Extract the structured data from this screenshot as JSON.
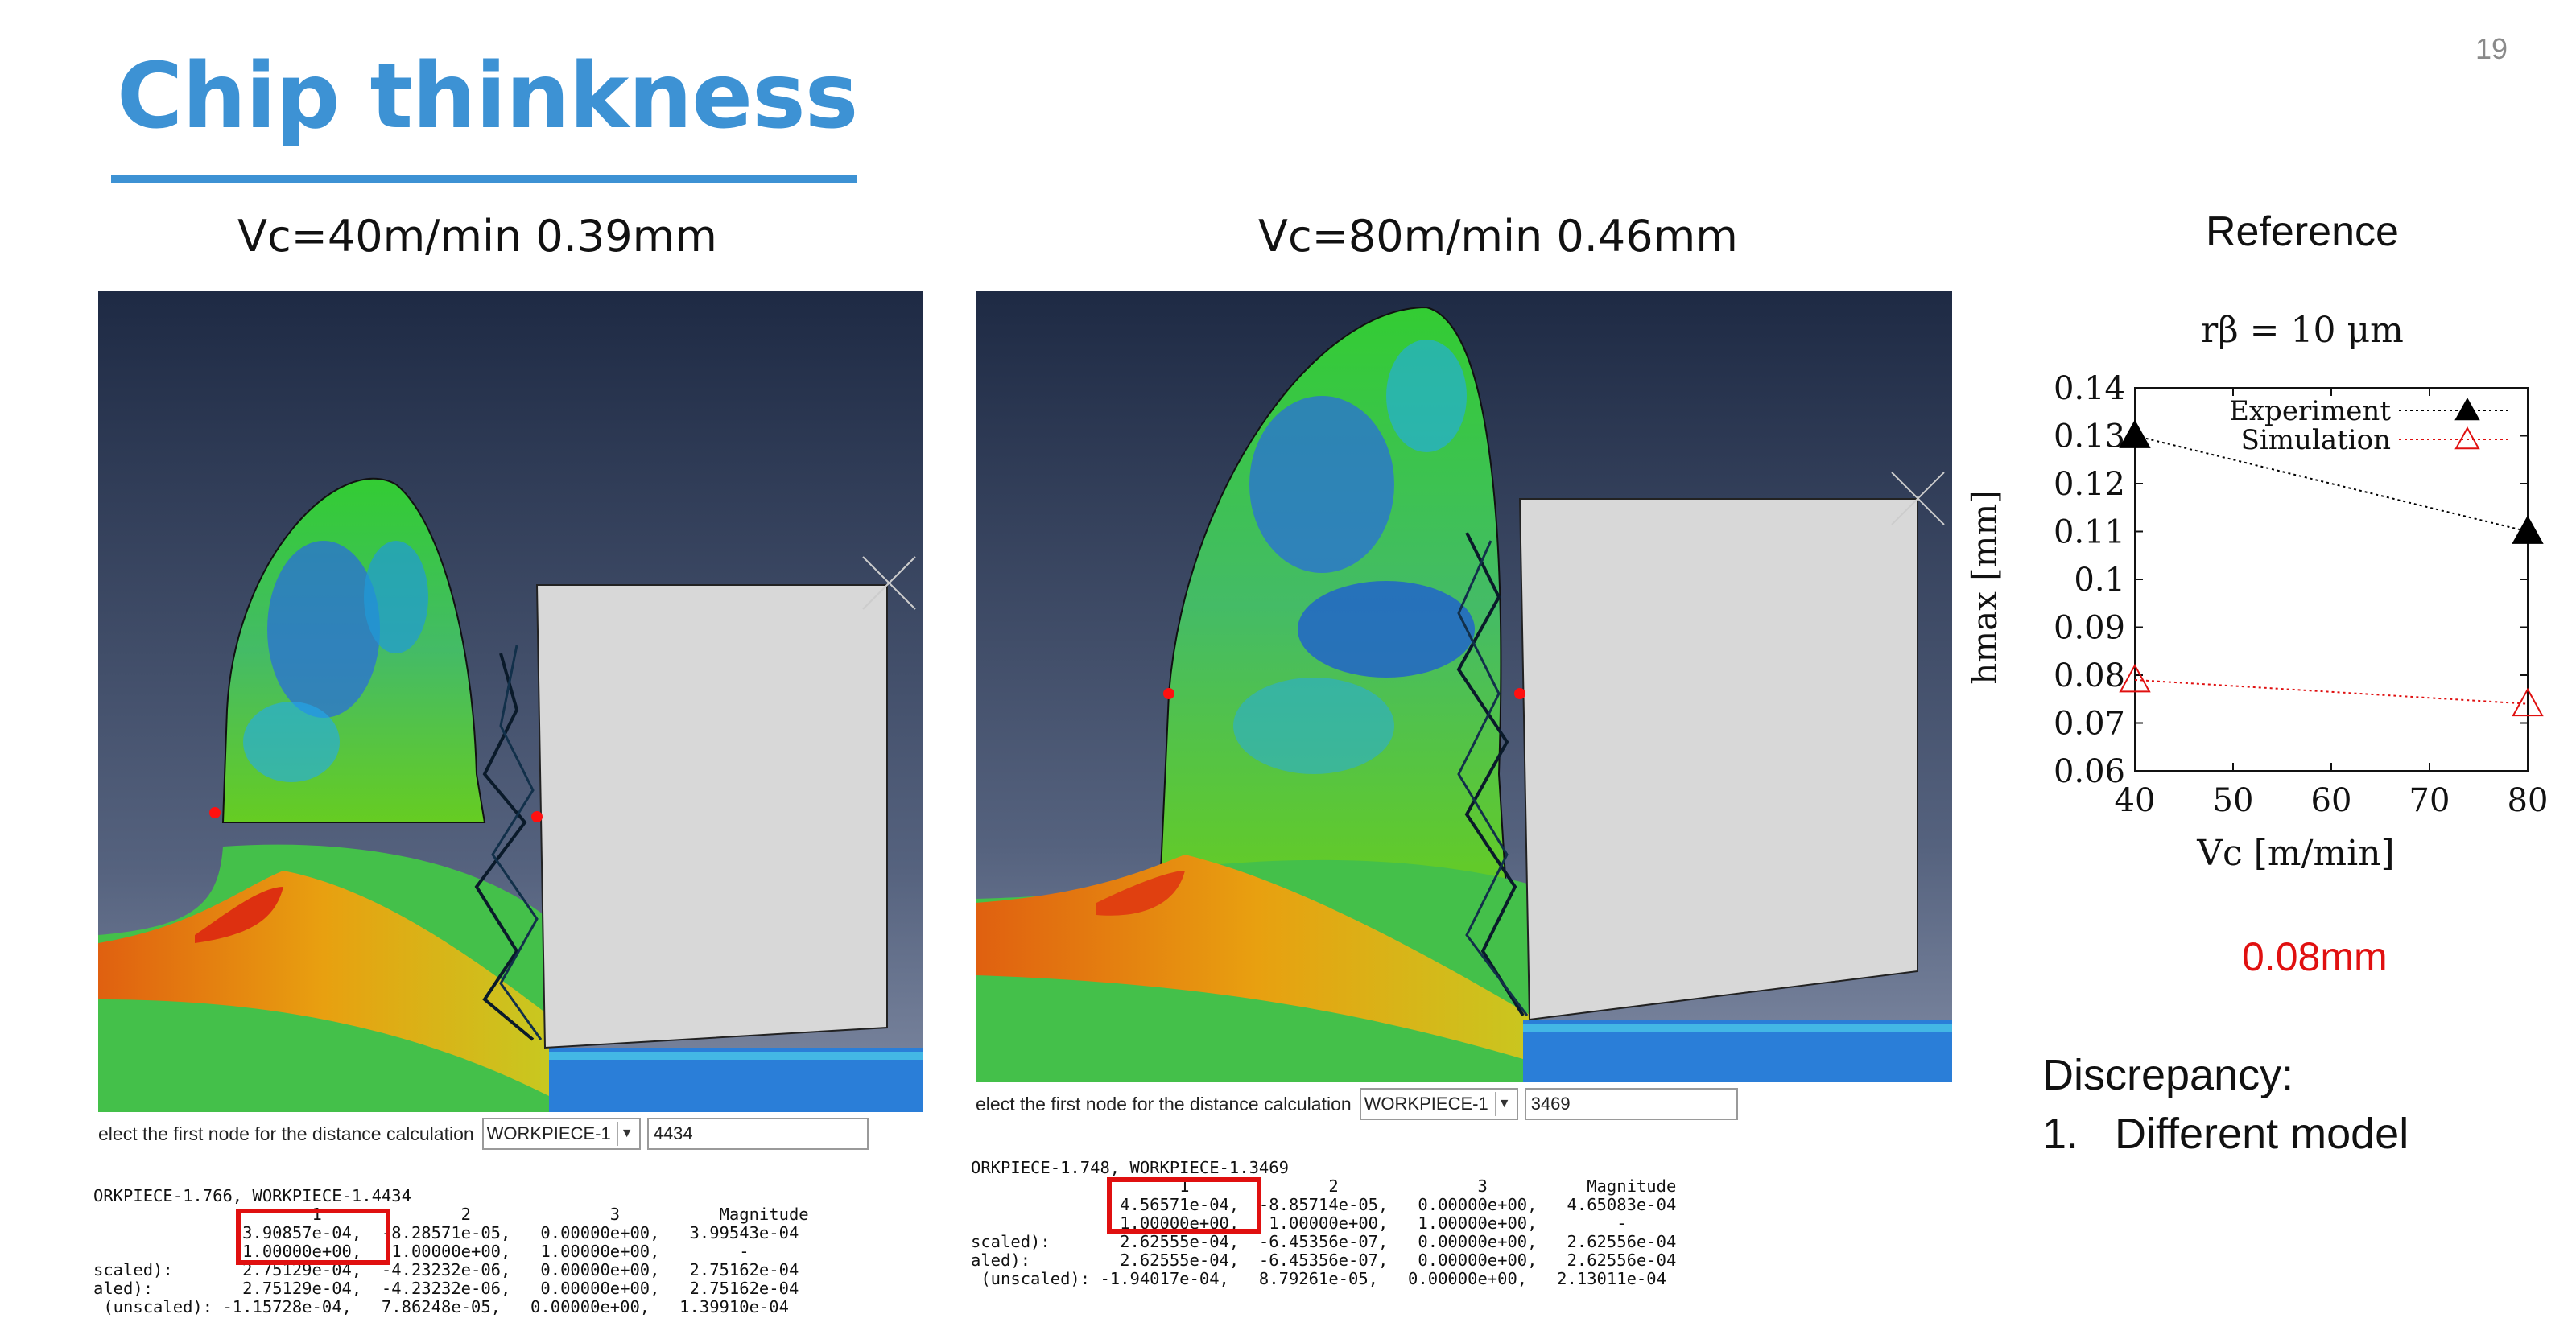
{
  "slide": {
    "title": "Chip thinkness",
    "page_number": "19",
    "accent_color": "#3d92d4"
  },
  "panels": [
    {
      "caption": "Vc=40m/min  0.39mm",
      "toolbar": {
        "label": "elect the first node for the distance calculation",
        "select_value": "WORKPIECE-1",
        "input_value": "4434"
      },
      "console_lines": [
        "ORKPIECE-1.766, WORKPIECE-1.4434",
        "                      1              2              3          Magnitude",
        "               3.90857e-04,  -8.28571e-05,   0.00000e+00,   3.99543e-04",
        "               1.00000e+00,   1.00000e+00,   1.00000e+00,        -",
        "scaled):       2.75129e-04,  -4.23232e-06,   0.00000e+00,   2.75162e-04",
        "aled):         2.75129e-04,  -4.23232e-06,   0.00000e+00,   2.75162e-04",
        " (unscaled): -1.15728e-04,   7.86248e-05,   0.00000e+00,   1.39910e-04"
      ]
    },
    {
      "caption": "Vc=80m/min  0.46mm",
      "toolbar": {
        "label": "elect the first node for the distance calculation",
        "select_value": "WORKPIECE-1",
        "input_value": "3469"
      },
      "console_lines": [
        "ORKPIECE-1.748, WORKPIECE-1.3469",
        "                     1              2              3          Magnitude",
        "               4.56571e-04,  -8.85714e-05,   0.00000e+00,   4.65083e-04",
        "               1.00000e+00,   1.00000e+00,   1.00000e+00,        -",
        "scaled):       2.62555e-04,  -6.45356e-07,   0.00000e+00,   2.62556e-04",
        "aled):         2.62555e-04,  -6.45356e-07,   0.00000e+00,   2.62556e-04",
        " (unscaled): -1.94017e-04,   8.79261e-05,   0.00000e+00,   2.13011e-04"
      ]
    }
  ],
  "reference": {
    "label": "Reference",
    "value": "0.08mm"
  },
  "discrepancy": {
    "title": "Discrepancy:",
    "items": [
      {
        "num": "1.",
        "text": "Different model"
      }
    ]
  },
  "chart_data": {
    "type": "line",
    "title": "rβ = 10 μm",
    "xlabel": "Vc [m/min]",
    "ylabel": "hmax [mm]",
    "xlim": [
      40,
      80
    ],
    "ylim": [
      0.06,
      0.14
    ],
    "x_ticks": [
      "40",
      "50",
      "60",
      "70",
      "80"
    ],
    "y_ticks": [
      "0.06",
      "0.07",
      "0.08",
      "0.09",
      "0.1",
      "0.11",
      "0.12",
      "0.13",
      "0.14"
    ],
    "legend_position": "top-right",
    "grid": false,
    "series": [
      {
        "name": "Experiment",
        "color": "#000000",
        "marker": "filled-triangle",
        "x": [
          40,
          80
        ],
        "y": [
          0.13,
          0.11
        ]
      },
      {
        "name": "Simulation",
        "color": "#e01010",
        "marker": "open-triangle",
        "x": [
          40,
          80
        ],
        "y": [
          0.079,
          0.074
        ]
      }
    ]
  }
}
